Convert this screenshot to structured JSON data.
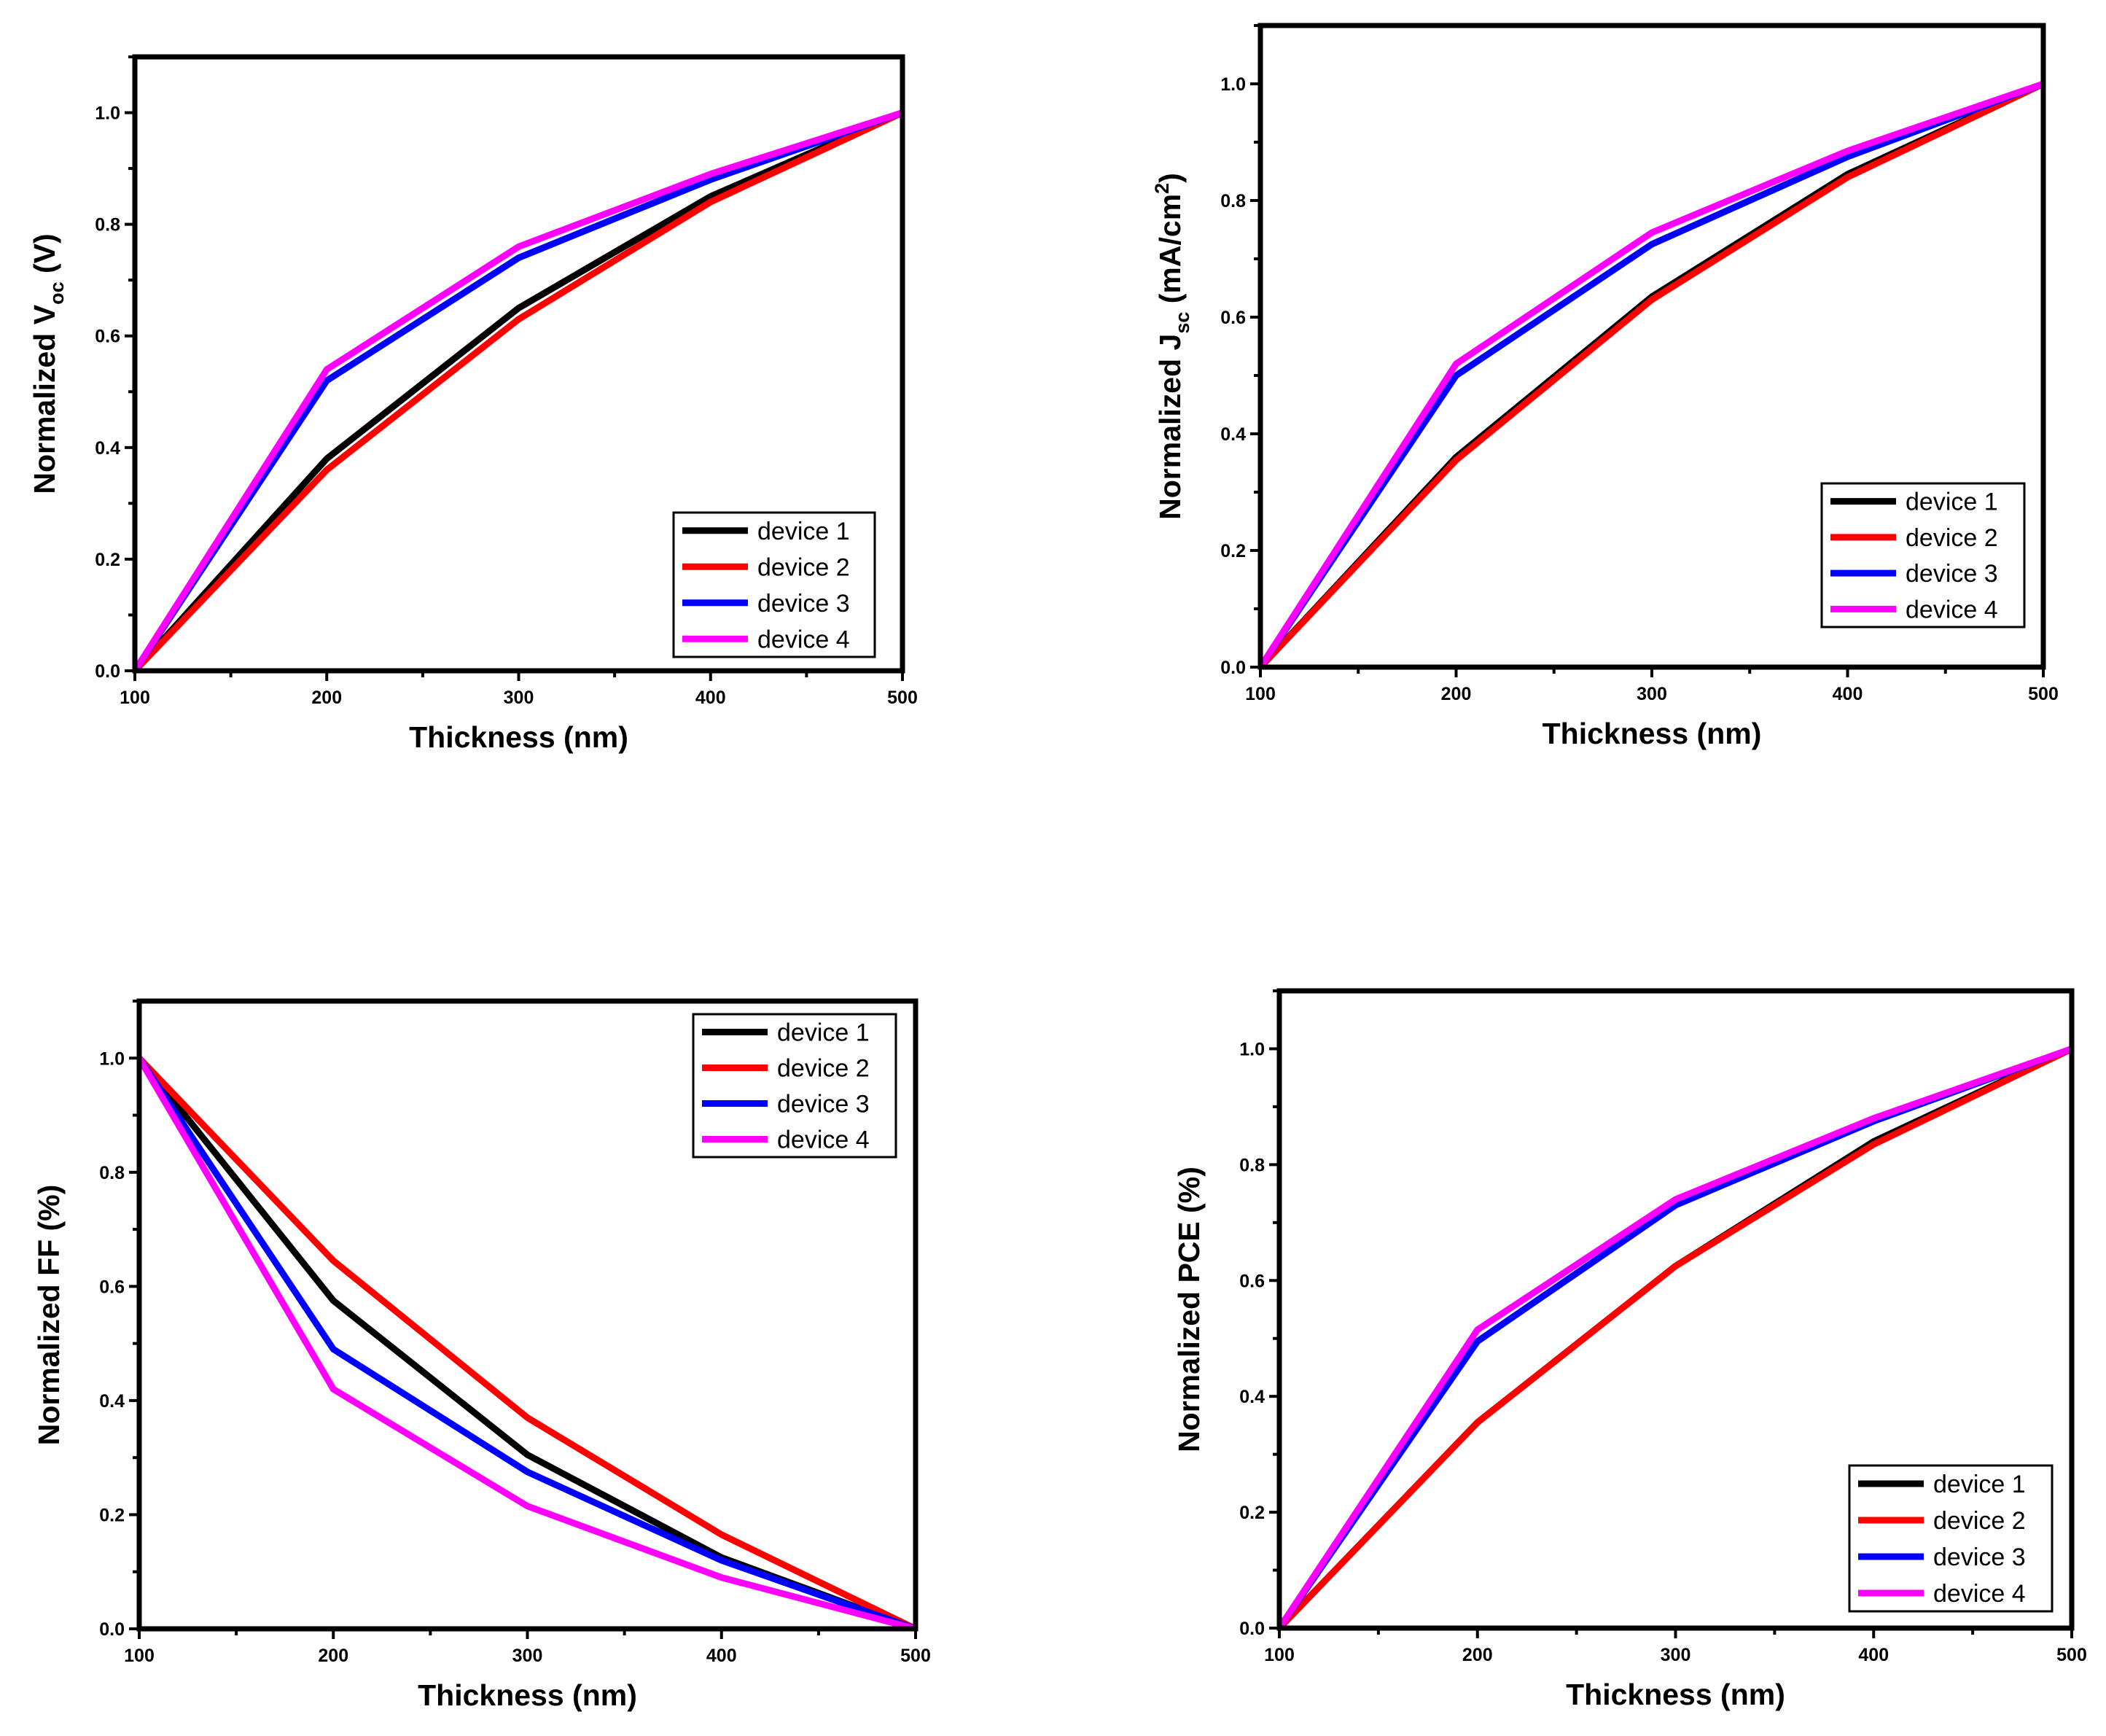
{
  "chart_data": [
    {
      "type": "line",
      "id": "voc",
      "title": "",
      "xlabel": "Thickness (nm)",
      "ylabel": "Normalized V",
      "ylabel_sub": "oc",
      "ylabel_suffix": " (V)",
      "x": [
        100,
        200,
        300,
        400,
        500
      ],
      "xlim": [
        100,
        500
      ],
      "ylim": [
        0,
        1.1
      ],
      "xticks": [
        "100",
        "200",
        "300",
        "400",
        "500"
      ],
      "yticks": [
        "0.0",
        "0.2",
        "0.4",
        "0.6",
        "0.8",
        "1.0"
      ],
      "legend_position": "bottom-right",
      "series": [
        {
          "name": "device 1",
          "color": "#000000",
          "values": [
            0.0,
            0.38,
            0.65,
            0.85,
            1.0
          ]
        },
        {
          "name": "device 2",
          "color": "#ff0000",
          "values": [
            0.0,
            0.36,
            0.63,
            0.84,
            1.0
          ]
        },
        {
          "name": "device 3",
          "color": "#0000ff",
          "values": [
            0.0,
            0.52,
            0.74,
            0.88,
            1.0
          ]
        },
        {
          "name": "device 4",
          "color": "#ff00ff",
          "values": [
            0.0,
            0.54,
            0.76,
            0.89,
            1.0
          ]
        }
      ]
    },
    {
      "type": "line",
      "id": "jsc",
      "title": "",
      "xlabel": "Thickness (nm)",
      "ylabel": "Normalized J",
      "ylabel_sub": "sc",
      "ylabel_suffix": " (mA/cm",
      "ylabel_sup": "2",
      "ylabel_end": ")",
      "x": [
        100,
        200,
        300,
        400,
        500
      ],
      "xlim": [
        100,
        500
      ],
      "ylim": [
        0,
        1.1
      ],
      "xticks": [
        "100",
        "200",
        "300",
        "400",
        "500"
      ],
      "yticks": [
        "0.0",
        "0.2",
        "0.4",
        "0.6",
        "0.8",
        "1.0"
      ],
      "legend_position": "bottom-right",
      "series": [
        {
          "name": "device 1",
          "color": "#000000",
          "values": [
            0.0,
            0.36,
            0.635,
            0.845,
            1.0
          ]
        },
        {
          "name": "device 2",
          "color": "#ff0000",
          "values": [
            0.0,
            0.355,
            0.63,
            0.84,
            1.0
          ]
        },
        {
          "name": "device 3",
          "color": "#0000ff",
          "values": [
            0.0,
            0.5,
            0.725,
            0.875,
            1.0
          ]
        },
        {
          "name": "device 4",
          "color": "#ff00ff",
          "values": [
            0.0,
            0.52,
            0.745,
            0.885,
            1.0
          ]
        }
      ]
    },
    {
      "type": "line",
      "id": "ff",
      "title": "",
      "xlabel": "Thickness (nm)",
      "ylabel": "Normalized FF (%)",
      "x": [
        100,
        200,
        300,
        400,
        500
      ],
      "xlim": [
        100,
        500
      ],
      "ylim": [
        0,
        1.1
      ],
      "xticks": [
        "100",
        "200",
        "300",
        "400",
        "500"
      ],
      "yticks": [
        "0.0",
        "0.2",
        "0.4",
        "0.6",
        "0.8",
        "1.0"
      ],
      "legend_position": "top-right",
      "series": [
        {
          "name": "device 1",
          "color": "#000000",
          "values": [
            1.0,
            0.575,
            0.305,
            0.125,
            0.0
          ]
        },
        {
          "name": "device 2",
          "color": "#ff0000",
          "values": [
            1.0,
            0.645,
            0.37,
            0.165,
            0.0
          ]
        },
        {
          "name": "device 3",
          "color": "#0000ff",
          "values": [
            1.0,
            0.49,
            0.275,
            0.12,
            0.0
          ]
        },
        {
          "name": "device 4",
          "color": "#ff00ff",
          "values": [
            1.0,
            0.42,
            0.215,
            0.09,
            0.0
          ]
        }
      ]
    },
    {
      "type": "line",
      "id": "pce",
      "title": "",
      "xlabel": "Thickness (nm)",
      "ylabel": "Normalized PCE (%)",
      "x": [
        100,
        200,
        300,
        400,
        500
      ],
      "xlim": [
        100,
        500
      ],
      "ylim": [
        0,
        1.1
      ],
      "xticks": [
        "100",
        "200",
        "300",
        "400",
        "500"
      ],
      "yticks": [
        "0.0",
        "0.2",
        "0.4",
        "0.6",
        "0.8",
        "1.0"
      ],
      "legend_position": "bottom-right",
      "series": [
        {
          "name": "device 1",
          "color": "#000000",
          "values": [
            0.0,
            0.355,
            0.625,
            0.84,
            1.0
          ]
        },
        {
          "name": "device 2",
          "color": "#ff0000",
          "values": [
            0.0,
            0.355,
            0.625,
            0.835,
            1.0
          ]
        },
        {
          "name": "device 3",
          "color": "#0000ff",
          "values": [
            0.0,
            0.495,
            0.73,
            0.875,
            1.0
          ]
        },
        {
          "name": "device 4",
          "color": "#ff00ff",
          "values": [
            0.0,
            0.515,
            0.74,
            0.88,
            1.0
          ]
        }
      ]
    }
  ]
}
